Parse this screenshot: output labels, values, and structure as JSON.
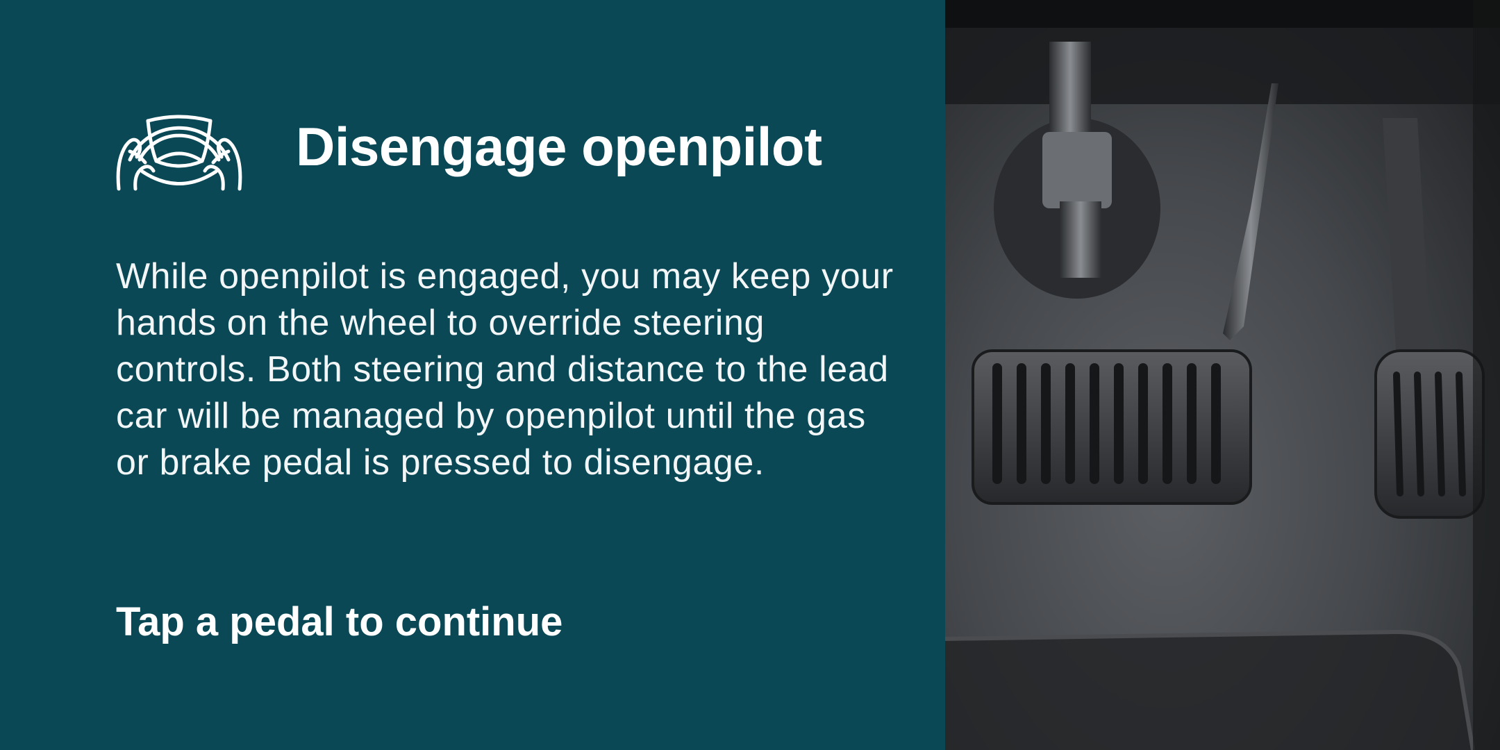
{
  "colors": {
    "panel_bg": "#0a4856",
    "text": "#ffffff"
  },
  "header": {
    "icon": "steering-wheel-hands-icon",
    "title": "Disengage openpilot"
  },
  "body": {
    "description": "While openpilot is engaged, you may keep your hands on the wheel to override steering controls. Both steering and distance to the lead car will be managed by openpilot until the gas or brake pedal is pressed to disengage."
  },
  "footer": {
    "cta": "Tap a pedal to continue"
  },
  "image": {
    "subject": "car-pedals-photo"
  }
}
